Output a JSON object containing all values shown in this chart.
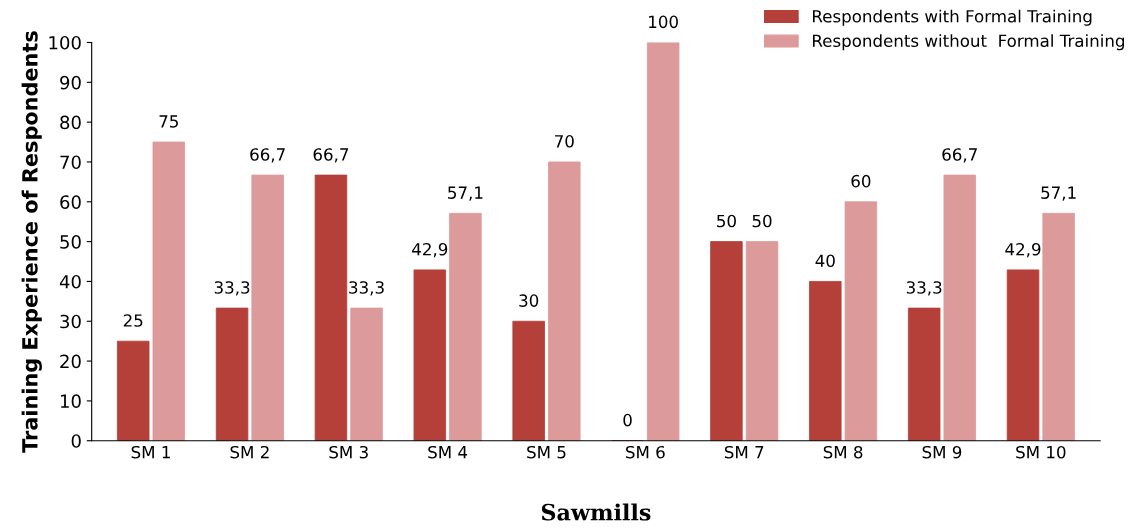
{
  "chart_data": {
    "type": "bar",
    "xlabel": "Sawmills",
    "ylabel": "Training Experience of Respondents",
    "categories": [
      "SM 1",
      "SM 2",
      "SM 3",
      "SM 4",
      "SM 5",
      "SM 6",
      "SM 7",
      "SM 8",
      "SM 9",
      "SM 10"
    ],
    "series": [
      {
        "name": "Respondents with Formal Training",
        "color": "#b5403a",
        "values": [
          25,
          33.3,
          66.7,
          42.9,
          30,
          0,
          50,
          40,
          33.3,
          42.9
        ],
        "value_labels": [
          "25",
          "33,3",
          "66,7",
          "42,9",
          "30",
          "0",
          "50",
          "40",
          "33,3",
          "42,9"
        ]
      },
      {
        "name": "Respondents without  Formal Training",
        "color": "#dc9a9a",
        "values": [
          75,
          66.7,
          33.3,
          57.1,
          70,
          100,
          50,
          60,
          66.7,
          57.1
        ],
        "value_labels": [
          "75",
          "66,7",
          "33,3",
          "57,1",
          "70",
          "100",
          "50",
          "60",
          "66,7",
          "57,1"
        ]
      }
    ],
    "ylim": [
      0,
      100
    ],
    "yticks": [
      0,
      10,
      20,
      30,
      40,
      50,
      60,
      70,
      80,
      90,
      100
    ],
    "grid": false,
    "legend": "top right"
  }
}
